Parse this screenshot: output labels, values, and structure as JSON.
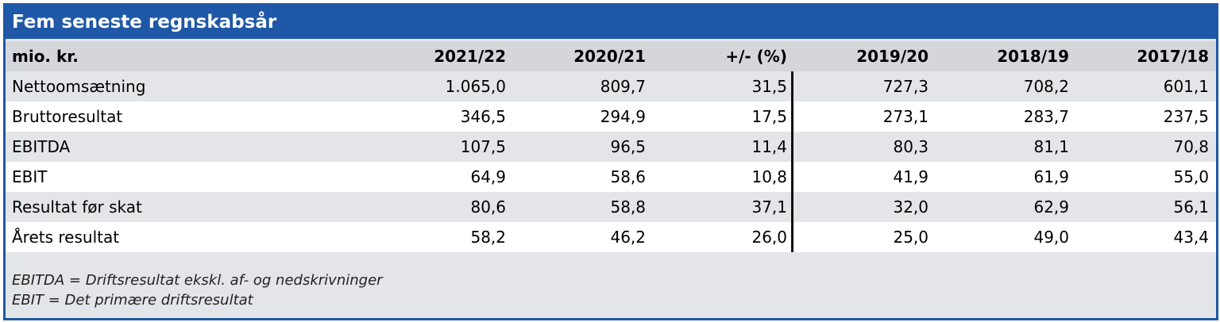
{
  "header": {
    "title": "Fem seneste regnskabsår"
  },
  "table": {
    "columns": [
      "mio. kr.",
      "2021/22",
      "2020/21",
      "+/- (%)",
      "2019/20",
      "2018/19",
      "2017/18"
    ],
    "rows": [
      [
        "Nettoomsætning",
        "1.065,0",
        "809,7",
        "31,5",
        "727,3",
        "708,2",
        "601,1"
      ],
      [
        "Bruttoresultat",
        "346,5",
        "294,9",
        "17,5",
        "273,1",
        "283,7",
        "237,5"
      ],
      [
        "EBITDA",
        "107,5",
        "96,5",
        "11,4",
        "80,3",
        "81,1",
        "70,8"
      ],
      [
        "EBIT",
        "64,9",
        "58,6",
        "10,8",
        "41,9",
        "61,9",
        "55,0"
      ],
      [
        "Resultat før skat",
        "80,6",
        "58,8",
        "37,1",
        "32,0",
        "62,9",
        "56,1"
      ],
      [
        "Årets resultat",
        "58,2",
        "46,2",
        "26,0",
        "25,0",
        "49,0",
        "43,4"
      ]
    ]
  },
  "footnotes": [
    "EBITDA = Driftsresultat ekskl. af- og nedskrivninger",
    "EBIT = Det primære driftsresultat"
  ]
}
